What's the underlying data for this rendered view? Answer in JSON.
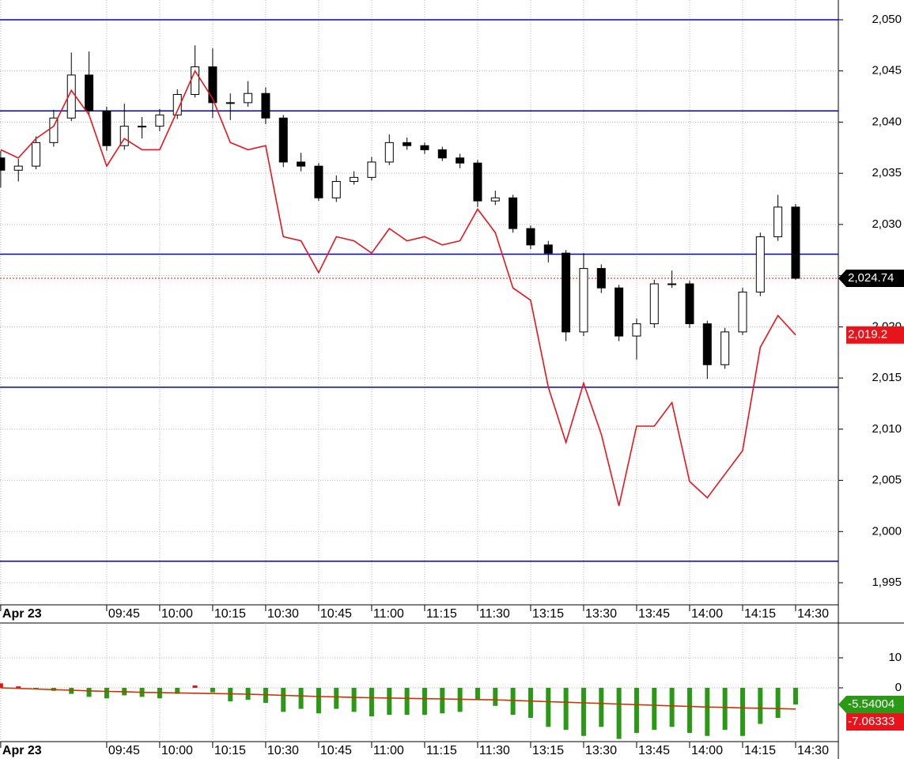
{
  "chart_data": [
    {
      "type": "candlestick",
      "x": [
        0,
        5,
        10,
        15,
        20,
        25,
        30,
        35,
        40,
        45,
        50,
        55,
        60,
        65,
        70,
        75,
        80,
        85,
        90,
        95,
        100,
        105,
        110,
        115,
        120,
        125,
        130,
        135,
        140,
        145,
        150,
        155,
        160,
        165,
        170,
        175,
        180,
        185,
        190,
        195,
        200,
        205,
        210,
        215,
        220,
        225
      ],
      "open": [
        2036.5,
        2035.3,
        2035.7,
        2038.0,
        2040.4,
        2044.6,
        2041.1,
        2037.7,
        2039.6,
        2039.6,
        2040.7,
        2042.7,
        2045.4,
        2041.9,
        2041.9,
        2042.8,
        2040.4,
        2036.1,
        2035.7,
        2032.6,
        2034.2,
        2034.6,
        2036.1,
        2038.0,
        2037.7,
        2037.3,
        2036.5,
        2036.0,
        2032.3,
        2032.6,
        2029.6,
        2028.0,
        2027.2,
        2019.5,
        2025.7,
        2023.8,
        2019.1,
        2020.3,
        2024.2,
        2024.2,
        2020.3,
        2016.3,
        2019.5,
        2023.4,
        2028.8,
        2031.7
      ],
      "high": [
        2037.2,
        2036.4,
        2038.6,
        2041.2,
        2046.8,
        2046.9,
        2041.5,
        2041.8,
        2040.5,
        2041.3,
        2043.2,
        2047.5,
        2047.2,
        2042.8,
        2044.0,
        2043.4,
        2040.7,
        2037.0,
        2036.0,
        2034.8,
        2035.2,
        2036.6,
        2038.8,
        2038.5,
        2038.0,
        2037.6,
        2036.9,
        2036.3,
        2033.3,
        2032.9,
        2029.9,
        2028.4,
        2027.5,
        2027.2,
        2026.1,
        2024.1,
        2020.8,
        2024.6,
        2025.5,
        2024.5,
        2020.6,
        2019.9,
        2023.8,
        2029.2,
        2032.9,
        2032.0
      ],
      "low": [
        2033.6,
        2034.2,
        2035.4,
        2037.6,
        2040.1,
        2040.6,
        2037.2,
        2037.3,
        2038.4,
        2039.1,
        2040.3,
        2042.4,
        2040.4,
        2040.2,
        2041.5,
        2039.8,
        2035.6,
        2035.2,
        2032.3,
        2032.2,
        2033.9,
        2034.3,
        2035.8,
        2037.3,
        2036.9,
        2036.2,
        2035.5,
        2031.7,
        2031.9,
        2029.2,
        2027.6,
        2026.3,
        2018.6,
        2019.1,
        2023.3,
        2018.6,
        2016.8,
        2019.9,
        2023.8,
        2019.9,
        2014.9,
        2015.9,
        2019.2,
        2023.0,
        2028.4,
        2024.6
      ],
      "close": [
        2035.3,
        2035.7,
        2038.0,
        2040.4,
        2044.6,
        2041.1,
        2037.7,
        2039.6,
        2039.6,
        2040.7,
        2042.7,
        2045.4,
        2041.9,
        2041.9,
        2042.8,
        2040.4,
        2036.1,
        2035.7,
        2032.6,
        2034.2,
        2034.6,
        2036.1,
        2038.0,
        2037.7,
        2037.3,
        2036.5,
        2036.0,
        2032.3,
        2032.6,
        2029.6,
        2028.0,
        2027.2,
        2019.5,
        2025.7,
        2023.8,
        2019.1,
        2020.3,
        2024.2,
        2024.2,
        2020.3,
        2016.3,
        2019.5,
        2023.4,
        2028.8,
        2031.7,
        2024.74
      ],
      "up_color": "#ffffff",
      "down_color": "#000000",
      "line": {
        "color": "#e8141b",
        "values": [
          2037.3,
          2036.5,
          2038.4,
          2039.6,
          2043.1,
          2040.7,
          2035.7,
          2038.4,
          2037.3,
          2037.3,
          2041.1,
          2045.0,
          2042.3,
          2038.0,
          2037.3,
          2037.7,
          2028.8,
          2028.4,
          2025.3,
          2028.8,
          2028.4,
          2027.2,
          2029.6,
          2028.4,
          2028.8,
          2028.0,
          2028.4,
          2031.5,
          2029.2,
          2023.8,
          2022.6,
          2014.1,
          2008.7,
          2014.5,
          2009.5,
          2002.5,
          2010.3,
          2010.3,
          2012.6,
          2004.9,
          2003.3,
          2005.6,
          2007.9,
          2018.0,
          2021.1,
          2019.2
        ]
      },
      "levels": [
        2050,
        2041.1,
        2027.1,
        2014.1,
        1997.1
      ],
      "level_color": "#0000cc",
      "price_tags": [
        {
          "value": 2024.74,
          "label": "2,024.74",
          "color": "#000000",
          "dashed": true
        },
        {
          "value": 2019.2,
          "label": "2,019.2",
          "color": "#e8141b",
          "dashed": false
        }
      ],
      "xlim": [
        -0.2,
        237.1
      ],
      "ylim": [
        1992.84,
        2051.93
      ],
      "xticks": [
        {
          "value": 0,
          "label": "Apr 23"
        },
        {
          "value": 30,
          "label": "09:45"
        },
        {
          "value": 45,
          "label": "10:00"
        },
        {
          "value": 60,
          "label": "10:15"
        },
        {
          "value": 75,
          "label": "10:30"
        },
        {
          "value": 90,
          "label": "10:45"
        },
        {
          "value": 105,
          "label": "11:00"
        },
        {
          "value": 120,
          "label": "11:15"
        },
        {
          "value": 135,
          "label": "11:30"
        },
        {
          "value": 150,
          "label": "13:15"
        },
        {
          "value": 165,
          "label": "13:30"
        },
        {
          "value": 180,
          "label": "13:45"
        },
        {
          "value": 195,
          "label": "14:00"
        },
        {
          "value": 210,
          "label": "14:15"
        },
        {
          "value": 225,
          "label": "14:30"
        }
      ],
      "yticks": [
        {
          "value": 1995,
          "label": "1,995"
        },
        {
          "value": 2000,
          "label": "2,000"
        },
        {
          "value": 2005,
          "label": "2,005"
        },
        {
          "value": 2010,
          "label": "2,010"
        },
        {
          "value": 2015,
          "label": "2,015"
        },
        {
          "value": 2020,
          "label": "2,020"
        },
        {
          "value": 2025,
          "label": "2,025"
        },
        {
          "value": 2030,
          "label": "2,030"
        },
        {
          "value": 2035,
          "label": "2,035"
        },
        {
          "value": 2040,
          "label": "2,040"
        },
        {
          "value": 2045,
          "label": "2,045"
        },
        {
          "value": 2050,
          "label": "2,050"
        }
      ],
      "grid": true
    },
    {
      "type": "bar",
      "x": [
        0,
        5,
        10,
        15,
        20,
        25,
        30,
        35,
        40,
        45,
        50,
        55,
        60,
        65,
        70,
        75,
        80,
        85,
        90,
        95,
        100,
        105,
        110,
        115,
        120,
        125,
        130,
        135,
        140,
        145,
        150,
        155,
        160,
        165,
        170,
        175,
        180,
        185,
        190,
        195,
        200,
        205,
        210,
        215,
        220,
        225
      ],
      "values": [
        1.5,
        0.5,
        -0.5,
        -1,
        -2,
        -3,
        -3.5,
        -2.5,
        -3,
        -3.5,
        -2,
        0.8,
        -1.5,
        -4.5,
        -4,
        -5,
        -8,
        -7,
        -8.5,
        -7,
        -8,
        -9.5,
        -9,
        -9,
        -9,
        -8.5,
        -8,
        -4,
        -6,
        -9,
        -10,
        -13,
        -14,
        -16,
        -13,
        -17,
        -15,
        -14,
        -13,
        -15,
        -16,
        -14,
        -16,
        -12,
        -10,
        -5.54004
      ],
      "up_color": "#e8141b",
      "down_color": "#2a9a16",
      "line": {
        "color": "#cc3300",
        "values": [
          0,
          -0.2,
          -0.4,
          -0.6,
          -0.8,
          -1.0,
          -1.2,
          -1.3,
          -1.5,
          -1.6,
          -1.7,
          -1.8,
          -1.9,
          -2.0,
          -2.1,
          -2.3,
          -2.5,
          -2.7,
          -2.9,
          -3.0,
          -3.2,
          -3.3,
          -3.4,
          -3.5,
          -3.6,
          -3.7,
          -3.8,
          -3.9,
          -4.0,
          -4.2,
          -4.4,
          -4.6,
          -4.8,
          -5.0,
          -5.2,
          -5.4,
          -5.6,
          -5.8,
          -6.0,
          -6.2,
          -6.4,
          -6.5,
          -6.7,
          -6.8,
          -6.9,
          -7.06333
        ]
      },
      "price_tags": [
        {
          "value": -5.54004,
          "label": "-5.54004",
          "color": "#2a9a16",
          "dashed": false
        },
        {
          "value": -7.06333,
          "label": "-7.06333",
          "color": "#e8141b",
          "dashed": false
        }
      ],
      "xlim": [
        -0.2,
        237.1
      ],
      "ylim": [
        -17.9,
        21.05
      ],
      "xticks": [
        {
          "value": 0,
          "label": "Apr 23"
        },
        {
          "value": 30,
          "label": "09:45"
        },
        {
          "value": 45,
          "label": "10:00"
        },
        {
          "value": 60,
          "label": "10:15"
        },
        {
          "value": 75,
          "label": "10:30"
        },
        {
          "value": 90,
          "label": "10:45"
        },
        {
          "value": 105,
          "label": "11:00"
        },
        {
          "value": 120,
          "label": "11:15"
        },
        {
          "value": 135,
          "label": "11:30"
        },
        {
          "value": 150,
          "label": "13:15"
        },
        {
          "value": 165,
          "label": "13:30"
        },
        {
          "value": 180,
          "label": "13:45"
        },
        {
          "value": 195,
          "label": "14:00"
        },
        {
          "value": 210,
          "label": "14:15"
        },
        {
          "value": 225,
          "label": "14:30"
        }
      ],
      "yticks": [
        0,
        10
      ],
      "grid": true
    }
  ]
}
